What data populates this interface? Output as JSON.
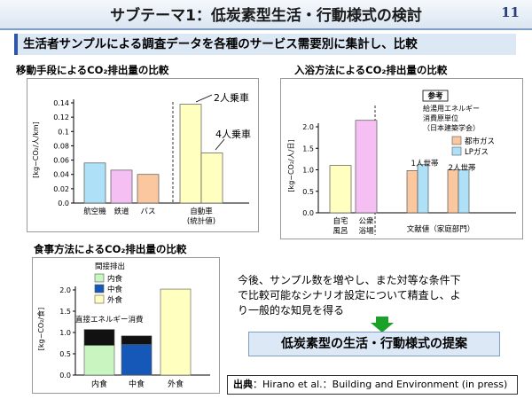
{
  "header": {
    "title": "サブテーマ1：低炭素型生活・行動様式の検討",
    "page_number": "11"
  },
  "subtitle": "生活者サンプルによる調査データを各種のサービス需要別に集計し、比較",
  "chart_data": [
    {
      "type": "bar",
      "title": "移動手段によるCO₂排出量の比較",
      "ylabel": "[kg−CO₂/人/km]",
      "ylim": [
        0,
        0.14
      ],
      "yticks": [
        "0.0",
        "0.02",
        "0.04",
        "0.06",
        "0.08",
        "0.1",
        "0.12",
        "0.14"
      ],
      "categories": [
        "航空機",
        "鉄道",
        "バス",
        "自動車（2人乗車）",
        "自動車（4人乗車）"
      ],
      "values": [
        0.056,
        0.046,
        0.04,
        0.138,
        0.07
      ],
      "colors": [
        "#aee1f8",
        "#f6bff4",
        "#fbc79e",
        "#ffffc0",
        "#ffffc0"
      ],
      "annotations": [
        "2人乗車",
        "4人乗車"
      ],
      "category_labels": [
        "航空機",
        "鉄道",
        "バス",
        "自動車",
        "(統計値)"
      ]
    },
    {
      "type": "bar",
      "title": "入浴方法によるCO₂排出量の比較",
      "ylabel": "[kg−CO₂/人/日]",
      "ylim": [
        0,
        2.0
      ],
      "yticks": [
        "0.0",
        "0.5",
        "1.0",
        "1.5",
        "2.0"
      ],
      "categories": [
        "自宅風呂",
        "公衆浴場",
        "文献値 1人世帯 都市ガス",
        "文献値 1人世帯 LPガス",
        "文献値 2人世帯 都市ガス",
        "文献値 2人世帯 LPガス"
      ],
      "values": [
        1.1,
        2.15,
        0.98,
        1.12,
        1.0,
        1.0
      ],
      "colors": [
        "#ffffc0",
        "#f6bff4",
        "#fbc79e",
        "#aee1f8",
        "#fbc79e",
        "#aee1f8"
      ],
      "category_labels": [
        "自宅",
        "風呂",
        "公衆",
        "浴場",
        "文献値（家庭部門）"
      ],
      "group_labels": [
        "1人世帯",
        "2人世帯"
      ],
      "reference_title": "参考",
      "reference_text": [
        "給湯用エネルギー",
        "消費原単位",
        "（日本建築学会）"
      ],
      "legend": [
        "都市ガス",
        "LPガス"
      ],
      "legend_colors": [
        "#fbc79e",
        "#aee1f8"
      ]
    },
    {
      "type": "bar",
      "title": "食事方法によるCO₂排出量の比較",
      "ylabel": "[kg−CO₂/食]",
      "ylim": [
        0,
        2.0
      ],
      "yticks": [
        "0.0",
        "0.5",
        "1.0",
        "1.5",
        "2.0"
      ],
      "categories": [
        "内食",
        "中食",
        "外食"
      ],
      "series": [
        {
          "name": "内食",
          "values": [
            0.7,
            0,
            0
          ],
          "color": "#c8f5c0"
        },
        {
          "name": "中食",
          "values": [
            0,
            0.72,
            0
          ],
          "color": "#1658b8"
        },
        {
          "name": "外食",
          "values": [
            0,
            0,
            2.02
          ],
          "color": "#ffffc0"
        },
        {
          "name": "直接エネルギー消費",
          "values": [
            0.37,
            0.2,
            0
          ],
          "color": "#111111"
        }
      ],
      "legend_title": "間接排出",
      "legend": [
        "内食",
        "中食",
        "外食"
      ],
      "annotation": "直接エネルギー消費"
    }
  ],
  "body_text": [
    "今後、サンプル数を増やし、また対等な条件下",
    "で比較可能なシナリオ設定について精査し、よ",
    "り一般的な知見を得る"
  ],
  "proposal": "低炭素型の生活・行動様式の提案",
  "citation": {
    "label": "出典",
    "text": "：Hirano et al.：Building and Environment (in press)"
  }
}
